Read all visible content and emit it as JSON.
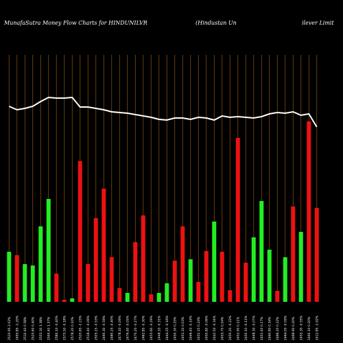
{
  "chart_data": {
    "type": "bar",
    "title": "MunafaSutra  Money Flow  Charts for HINDUNILVR",
    "subtitle": "(Hindustan  Un",
    "subtitle2": "ilever Limit",
    "categories": [
      "2520.95 2.02%",
      "2495.85 -1.20%",
      "2510.40 0.58%",
      "2520.60 0.40%",
      "2555.30 1.38%",
      "2590.40 1.37%",
      "2580.10 -0.40%",
      "2575.50 -0.18%",
      "2578.20 0.10%",
      "2520.65 -2.23%",
      "2518.40 -0.09%",
      "2505.15 -0.53%",
      "2490.30 -0.59%",
      "2480.25 -0.40%",
      "2478.10 -0.09%",
      "2476.90 -0.05%",
      "2470.20 -0.27%",
      "2462.85 -0.30%",
      "2455.60 -0.29%",
      "2448.10 -0.31%",
      "2444.25 -0.16%",
      "2450.30 0.25%",
      "2451.10 0.03%",
      "2446.40 -0.19%",
      "2452.15 0.24%",
      "2450.80 -0.06%",
      "2442.50 -0.34%",
      "2455.70 0.54%",
      "2450.20 -0.22%",
      "2452.90 0.11%",
      "2450.10 -0.11%",
      "2448.30 -0.07%",
      "2452.40 0.17%",
      "2460.80 0.34%",
      "2466.20 0.22%",
      "2464.00 -0.09%",
      "2468.90 0.20%",
      "2455.30 -0.55%",
      "2460.10 0.20%",
      "2412.85 -1.92%"
    ],
    "values": [
      73,
      68,
      55,
      53,
      110,
      150,
      41,
      3,
      5,
      205,
      55,
      122,
      165,
      65,
      20,
      13,
      87,
      126,
      11,
      13,
      27,
      60,
      110,
      62,
      29,
      74,
      117,
      73,
      17,
      239,
      57,
      94,
      147,
      76,
      16,
      65,
      139,
      102,
      263,
      137
    ],
    "colors": [
      "#22ee22",
      "#ee1111",
      "#22ee22",
      "#22ee22",
      "#22ee22",
      "#22ee22",
      "#ee1111",
      "#ee1111",
      "#22ee22",
      "#ee1111",
      "#ee1111",
      "#ee1111",
      "#ee1111",
      "#ee1111",
      "#ee1111",
      "#22ee22",
      "#ee1111",
      "#ee1111",
      "#ee1111",
      "#22ee22",
      "#22ee22",
      "#ee1111",
      "#ee1111",
      "#22ee22",
      "#ee1111",
      "#ee1111",
      "#22ee22",
      "#ee1111",
      "#ee1111",
      "#ee1111",
      "#ee1111",
      "#22ee22",
      "#22ee22",
      "#22ee22",
      "#ee1111",
      "#22ee22",
      "#ee1111",
      "#22ee22",
      "#ee1111",
      "#ee1111"
    ],
    "line": {
      "color": "#ffffff",
      "values": [
        285,
        280,
        282,
        285,
        292,
        298,
        297,
        297,
        298,
        284,
        284,
        282,
        280,
        277,
        276,
        275,
        273,
        271,
        269,
        266,
        265,
        268,
        268,
        266,
        269,
        268,
        265,
        271,
        269,
        270,
        269,
        268,
        270,
        274,
        276,
        275,
        277,
        272,
        274,
        255
      ]
    },
    "ylim": [
      0,
      440
    ],
    "grid": true,
    "grid_color": "#8a4a10"
  }
}
